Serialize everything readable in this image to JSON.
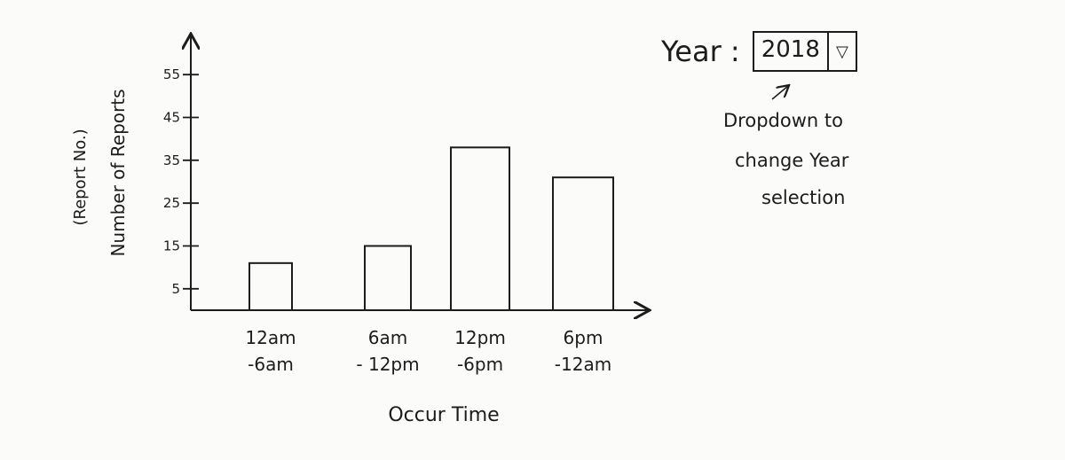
{
  "chart_data": {
    "type": "bar",
    "title": "",
    "xlabel": "Occur Time",
    "ylabel": "Number of Reports",
    "ylabel_sub": "(Report No.)",
    "categories": [
      "12am -6am",
      "6am -12pm",
      "12pm -6pm",
      "6pm -12am"
    ],
    "category_lines": [
      [
        "12am",
        "-6am"
      ],
      [
        "6am",
        "- 12pm"
      ],
      [
        "12pm",
        "-6pm"
      ],
      [
        "6pm",
        "-12am"
      ]
    ],
    "values": [
      11,
      15,
      38,
      31
    ],
    "yticks": [
      5,
      15,
      25,
      35,
      45,
      55
    ],
    "ylim": [
      0,
      60
    ],
    "grid": false
  },
  "controls": {
    "year_label": "Year :",
    "year_value": "2018",
    "year_arrow": "▽"
  },
  "annotation": {
    "lines": [
      "Dropdown to",
      "change Year",
      "selection"
    ]
  }
}
